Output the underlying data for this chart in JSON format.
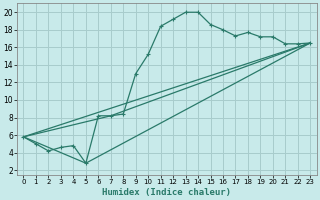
{
  "title": "",
  "xlabel": "Humidex (Indice chaleur)",
  "ylabel": "",
  "bg_color": "#c8eaea",
  "grid_color": "#a8cccc",
  "line_color": "#2a7a6a",
  "xlim": [
    -0.5,
    23.5
  ],
  "ylim": [
    1.5,
    21
  ],
  "xticks": [
    0,
    1,
    2,
    3,
    4,
    5,
    6,
    7,
    8,
    9,
    10,
    11,
    12,
    13,
    14,
    15,
    16,
    17,
    18,
    19,
    20,
    21,
    22,
    23
  ],
  "yticks": [
    2,
    4,
    6,
    8,
    10,
    12,
    14,
    16,
    18,
    20
  ],
  "line1_x": [
    0,
    1,
    2,
    3,
    4,
    5,
    6,
    7,
    8,
    9,
    10,
    11,
    12,
    13,
    14,
    15,
    16,
    17,
    18,
    19,
    20,
    21,
    22,
    23
  ],
  "line1_y": [
    5.8,
    5.0,
    4.2,
    4.6,
    4.8,
    2.8,
    8.2,
    8.2,
    8.4,
    13.0,
    15.2,
    18.4,
    19.2,
    20.0,
    20.0,
    18.6,
    18.0,
    17.3,
    17.7,
    17.2,
    17.2,
    16.4,
    16.4,
    16.5
  ],
  "line2_x": [
    0,
    23
  ],
  "line2_y": [
    5.8,
    16.5
  ],
  "line3_x": [
    0,
    7,
    23
  ],
  "line3_y": [
    5.8,
    8.2,
    16.5
  ],
  "line4_x": [
    0,
    5,
    23
  ],
  "line4_y": [
    5.8,
    2.8,
    16.5
  ]
}
